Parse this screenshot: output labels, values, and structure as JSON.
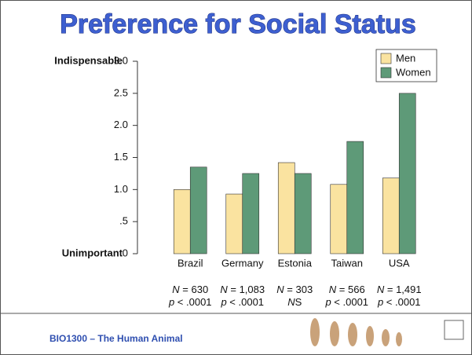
{
  "chart_data": {
    "type": "bar",
    "title": "Preference for Social Status",
    "y_top_label": "Indispensable",
    "y_bottom_label": "Unimportant",
    "categories": [
      "Brazil",
      "Germany",
      "Estonia",
      "Taiwan",
      "USA"
    ],
    "series": [
      {
        "name": "Men",
        "color": "#fae3a0",
        "values": [
          1.0,
          0.93,
          1.42,
          1.08,
          1.18
        ]
      },
      {
        "name": "Women",
        "color": "#5e9a78",
        "values": [
          1.35,
          1.25,
          1.25,
          1.75,
          2.5
        ]
      }
    ],
    "ylim": [
      0,
      3
    ],
    "yticks": [
      0,
      {
        "value": 0.5,
        "label": ".5"
      },
      {
        "value": 1,
        "label": "1.0"
      },
      1.5,
      {
        "value": 2,
        "label": "2.0"
      },
      2.5,
      {
        "value": 3,
        "label": "3.0"
      }
    ],
    "legend": "upper right",
    "notes": [
      {
        "n": "N = 630",
        "p": "p < .0001"
      },
      {
        "n": "N = 1,083",
        "p": "p < .0001"
      },
      {
        "n": "N = 303",
        "p": "NS"
      },
      {
        "n": "N = 566",
        "p": "p < .0001"
      },
      {
        "n": "N = 1,491",
        "p": "p < .0001"
      }
    ],
    "footer": "BIO1300 – The Human Animal"
  }
}
